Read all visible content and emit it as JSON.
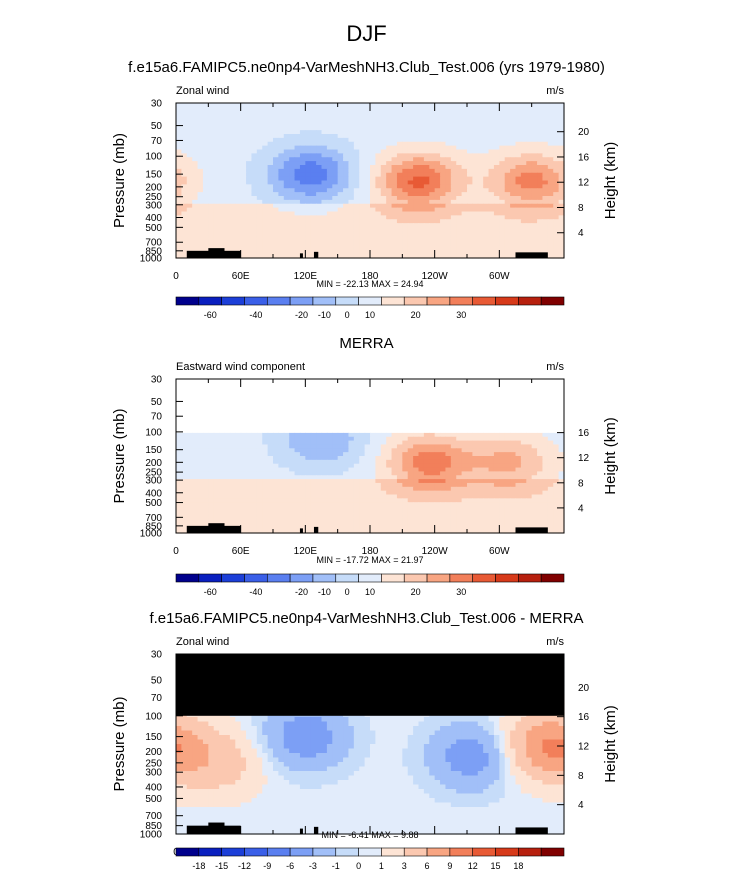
{
  "figure": {
    "title": "DJF",
    "lon_ticks": [
      "0",
      "60E",
      "120E",
      "180",
      "120W",
      "60W"
    ],
    "pressure_ticks": [
      "30",
      "50",
      "70",
      "100",
      "150",
      "200",
      "250",
      "300",
      "400",
      "500",
      "700",
      "850",
      "1000"
    ],
    "left_axis_label": "Pressure (mb)",
    "right_axis_label": "Height (km)"
  },
  "chart_data": [
    {
      "type": "heatmap",
      "title": "f.e15a6.FAMIPC5.ne0np4-VarMeshNH3.Club_Test.006 (yrs 1979-1980)",
      "left_string": "Zonal wind",
      "units": "m/s",
      "xlabel": "",
      "ylabel": "Pressure (mb)",
      "y2label": "Height (km)",
      "x_ticks": [
        "0",
        "60E",
        "120E",
        "180",
        "120W",
        "60W"
      ],
      "y_ticks": [
        "30",
        "50",
        "70",
        "100",
        "150",
        "200",
        "250",
        "300",
        "400",
        "500",
        "700",
        "850",
        "1000"
      ],
      "y2_ticks": [
        "20",
        "16",
        "12",
        "8",
        "4"
      ],
      "ylim_mb": [
        1000,
        30
      ],
      "stats": "MIN = -22.13  MAX = 24.94",
      "min": -22.13,
      "max": 24.94,
      "colorbar": {
        "labels": [
          "-60",
          "-40",
          "-20",
          "-10",
          "0",
          "10",
          "20",
          "30"
        ],
        "colors": [
          "#00008c",
          "#0a1fbf",
          "#1c3fd8",
          "#3a5fe8",
          "#5a7ff0",
          "#7c9ff5",
          "#a1bff8",
          "#c6dcf9",
          "#e2ecfb",
          "#fde4d5",
          "#fbc8b0",
          "#f8a582",
          "#f27f5a",
          "#e85a35",
          "#d73a1a",
          "#b7200e",
          "#800000"
        ]
      },
      "features": [
        {
          "name": "westerly jet core 120W",
          "lon": 225,
          "p": 175,
          "value": 24
        },
        {
          "name": "westerly jet core 60W-0",
          "lon": 330,
          "p": 175,
          "value": 20
        },
        {
          "name": "easterly core 120E",
          "lon": 125,
          "p": 150,
          "value": -20
        }
      ]
    },
    {
      "type": "heatmap",
      "title": "MERRA",
      "left_string": "Eastward wind component",
      "units": "m/s",
      "xlabel": "",
      "ylabel": "Pressure (mb)",
      "y2label": "Height (km)",
      "x_ticks": [
        "0",
        "60E",
        "120E",
        "180",
        "120W",
        "60W"
      ],
      "y_ticks": [
        "30",
        "50",
        "70",
        "100",
        "150",
        "200",
        "250",
        "300",
        "400",
        "500",
        "700",
        "850",
        "1000"
      ],
      "y2_ticks": [
        "16",
        "12",
        "8",
        "4"
      ],
      "ylim_mb": [
        1000,
        30
      ],
      "data_top_mb": 100,
      "stats": "MIN = -17.72  MAX = 21.97",
      "min": -17.72,
      "max": 21.97,
      "colorbar": {
        "labels": [
          "-60",
          "-40",
          "-20",
          "-10",
          "0",
          "10",
          "20",
          "30"
        ],
        "colors": [
          "#00008c",
          "#0a1fbf",
          "#1c3fd8",
          "#3a5fe8",
          "#5a7ff0",
          "#7c9ff5",
          "#a1bff8",
          "#c6dcf9",
          "#e2ecfb",
          "#fde4d5",
          "#fbc8b0",
          "#f8a582",
          "#f27f5a",
          "#e85a35",
          "#d73a1a",
          "#b7200e",
          "#800000"
        ]
      },
      "features": [
        {
          "name": "westerly jet core 120W",
          "lon": 235,
          "p": 200,
          "value": 21
        },
        {
          "name": "westerly jet core 60W",
          "lon": 310,
          "p": 200,
          "value": 14
        },
        {
          "name": "easterly core 120E",
          "lon": 135,
          "p": 120,
          "value": -12
        }
      ]
    },
    {
      "type": "heatmap",
      "title": "f.e15a6.FAMIPC5.ne0np4-VarMeshNH3.Club_Test.006 - MERRA",
      "left_string": "Zonal wind",
      "units": "m/s",
      "xlabel": "",
      "ylabel": "Pressure (mb)",
      "y2label": "Height (km)",
      "x_ticks": [
        "0",
        "60E",
        "120E",
        "180",
        "120W",
        "60W"
      ],
      "y_ticks": [
        "30",
        "50",
        "70",
        "100",
        "150",
        "200",
        "250",
        "300",
        "400",
        "500",
        "700",
        "850",
        "1000"
      ],
      "y2_ticks": [
        "20",
        "16",
        "12",
        "8",
        "4"
      ],
      "ylim_mb": [
        1000,
        30
      ],
      "masked_above_mb": 100,
      "stats": "MIN = -6.41  MAX = 9.88",
      "min": -6.41,
      "max": 9.88,
      "colorbar": {
        "labels": [
          "-18",
          "-15",
          "-12",
          "-9",
          "-6",
          "-3",
          "-1",
          "0",
          "1",
          "3",
          "6",
          "9",
          "12",
          "15",
          "18"
        ],
        "colors": [
          "#00008c",
          "#0a1fbf",
          "#1c3fd8",
          "#3a5fe8",
          "#5a7ff0",
          "#7c9ff5",
          "#a1bff8",
          "#c6dcf9",
          "#e2ecfb",
          "#fde4d5",
          "#fbc8b0",
          "#f8a582",
          "#f27f5a",
          "#e85a35",
          "#d73a1a",
          "#b7200e",
          "#800000"
        ]
      },
      "features": [
        {
          "name": "positive diff 60W-0",
          "lon": 345,
          "p": 180,
          "value": 9
        },
        {
          "name": "positive diff 60E",
          "lon": 40,
          "p": 250,
          "value": 4
        },
        {
          "name": "negative diff 120E",
          "lon": 120,
          "p": 150,
          "value": -5
        },
        {
          "name": "negative diff 150W",
          "lon": 275,
          "p": 220,
          "value": -5
        }
      ]
    }
  ]
}
